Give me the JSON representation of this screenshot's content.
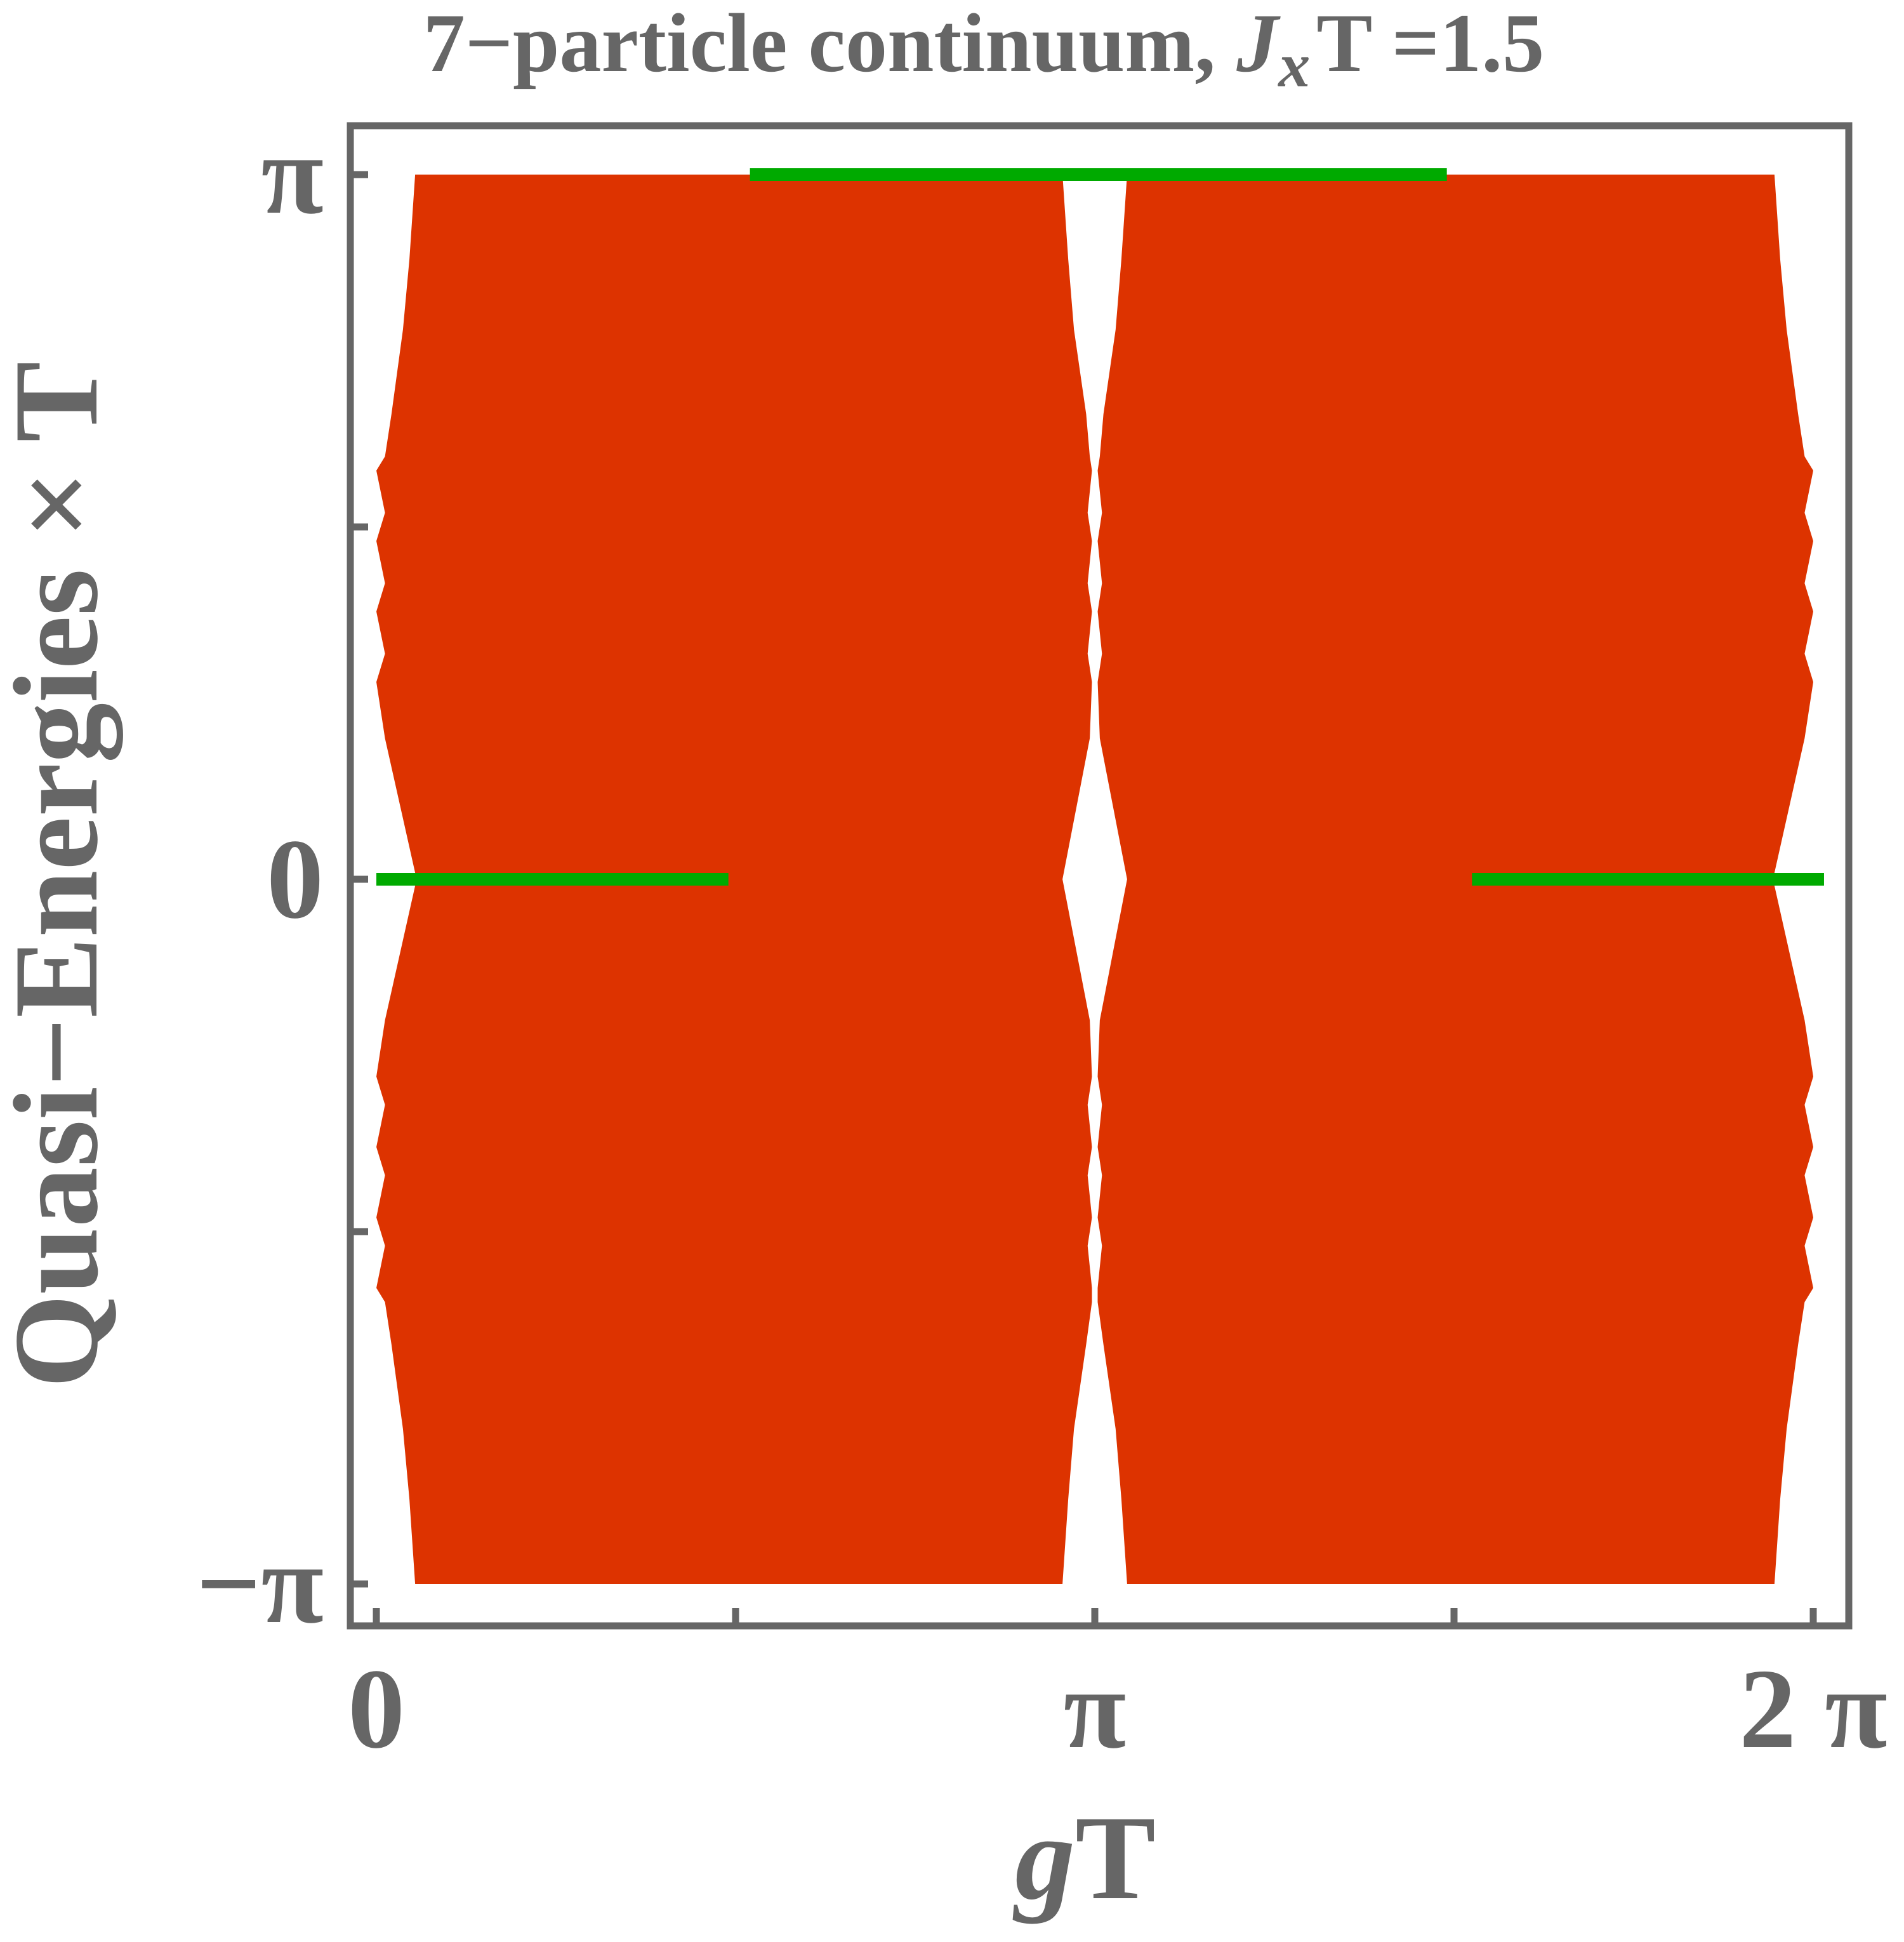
{
  "chart_data": {
    "type": "area",
    "title_prefix": "7−particle continuum, ",
    "title_var": "J",
    "title_sub": "x",
    "title_suffix": "T =1.5",
    "xlabel_var": "g",
    "xlabel_suffix": "T",
    "ylabel": "Quasi−Energies × T",
    "x_unit": "pi",
    "y_unit": "pi",
    "xlim": [
      0,
      2.04
    ],
    "ylim": [
      -1.06,
      1.06
    ],
    "x_ticks": [
      {
        "value": 0,
        "label": "0"
      },
      {
        "value": 0.5,
        "label": ""
      },
      {
        "value": 1,
        "label": "π"
      },
      {
        "value": 1.5,
        "label": ""
      },
      {
        "value": 2,
        "label": "2 π"
      }
    ],
    "y_ticks": [
      {
        "value": -1,
        "label": "−π"
      },
      {
        "value": -0.5,
        "label": ""
      },
      {
        "value": 0,
        "label": "0"
      },
      {
        "value": 0.5,
        "label": ""
      },
      {
        "value": 1,
        "label": "π"
      }
    ],
    "regions": [
      {
        "name": "",
        "color": "#dd3300",
        "x_min": [
          0.054,
          0.046,
          0.037,
          0.021,
          0.012,
          0.0,
          0.012,
          0.0,
          0.012,
          0.0,
          0.012,
          0.0,
          0.012,
          0.056,
          0.012,
          0.0,
          0.012,
          0.0,
          0.012,
          0.0,
          0.012,
          0.0,
          0.012,
          0.021,
          0.037,
          0.046,
          0.054
        ],
        "x_max": [
          0.955,
          0.963,
          0.971,
          0.988,
          0.996,
          0.996,
          0.99,
          0.996,
          0.99,
          0.996,
          0.99,
          0.996,
          0.993,
          0.955,
          0.993,
          0.996,
          0.99,
          0.996,
          0.99,
          0.996,
          0.99,
          0.996,
          0.993,
          0.988,
          0.971,
          0.963,
          0.955
        ],
        "y": [
          -1.0,
          -0.88,
          -0.78,
          -0.66,
          -0.6,
          -0.58,
          -0.52,
          -0.48,
          -0.42,
          -0.38,
          -0.32,
          -0.28,
          -0.2,
          0.0,
          0.2,
          0.28,
          0.32,
          0.38,
          0.42,
          0.48,
          0.52,
          0.58,
          0.6,
          0.66,
          0.78,
          0.88,
          1.0
        ]
      },
      {
        "name": "",
        "color": "#dd3300",
        "x_min": [
          1.045,
          1.037,
          1.029,
          1.012,
          1.004,
          1.004,
          1.01,
          1.004,
          1.01,
          1.004,
          1.01,
          1.004,
          1.007,
          1.045,
          1.007,
          1.004,
          1.01,
          1.004,
          1.01,
          1.004,
          1.01,
          1.004,
          1.007,
          1.012,
          1.029,
          1.037,
          1.045
        ],
        "x_max": [
          1.946,
          1.954,
          1.963,
          1.979,
          1.988,
          2.0,
          1.988,
          2.0,
          1.988,
          2.0,
          1.988,
          2.0,
          1.988,
          1.944,
          1.988,
          2.0,
          1.988,
          2.0,
          1.988,
          2.0,
          1.988,
          2.0,
          1.988,
          1.979,
          1.963,
          1.954,
          1.946
        ],
        "y": [
          -1.0,
          -0.88,
          -0.78,
          -0.66,
          -0.6,
          -0.58,
          -0.52,
          -0.48,
          -0.42,
          -0.38,
          -0.32,
          -0.28,
          -0.2,
          0.0,
          0.2,
          0.28,
          0.32,
          0.38,
          0.42,
          0.48,
          0.52,
          0.58,
          0.6,
          0.66,
          0.78,
          0.88,
          1.0
        ]
      }
    ],
    "segments": [
      {
        "name": "",
        "color": "#00aa00",
        "x": [
          0.0,
          0.49
        ],
        "y": 0
      },
      {
        "name": "",
        "color": "#00aa00",
        "x": [
          0.52,
          1.49
        ],
        "y": 1
      },
      {
        "name": "",
        "color": "#00aa00",
        "x": [
          1.525,
          2.015
        ],
        "y": 0
      }
    ],
    "grid": false,
    "legend": "none"
  }
}
